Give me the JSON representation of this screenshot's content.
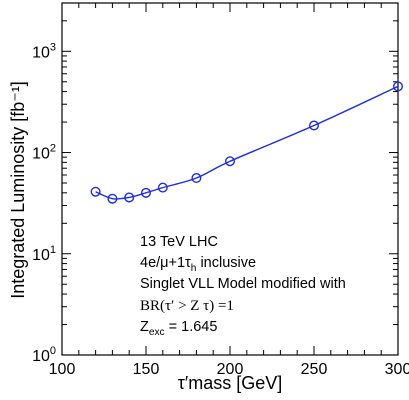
{
  "chart_data": {
    "type": "line",
    "xlabel": "τ′mass  [GeV]",
    "ylabel": "Integrated Luminosity [fb⁻¹]",
    "xlim": [
      100,
      300
    ],
    "ylim": [
      1,
      3000
    ],
    "y_scale": "log",
    "grid": false,
    "x_ticks": [
      "100",
      "150",
      "200",
      "250",
      "300"
    ],
    "y_ticks": [
      {
        "base": "10",
        "exp": "0"
      },
      {
        "base": "10",
        "exp": "1"
      },
      {
        "base": "10",
        "exp": "2"
      },
      {
        "base": "10",
        "exp": "3"
      }
    ],
    "color": "#1f2dd6",
    "series": [
      {
        "x": [
          120,
          130,
          140,
          150,
          160,
          180,
          200,
          250,
          300
        ],
        "y": [
          41,
          35,
          36,
          40,
          45,
          56,
          82,
          185,
          450
        ]
      }
    ],
    "annotations": {
      "line1": "13 TeV LHC",
      "line2_pre": "4e/μ+1τ",
      "line2_sub": "h",
      "line2_post": " inclusive",
      "line3": "Singlet VLL Model modified with",
      "line4": "BR(τ′ > Z τ) =1",
      "line5_pre": "Z",
      "line5_sub": "exc",
      "line5_post": " = 1.645"
    }
  }
}
